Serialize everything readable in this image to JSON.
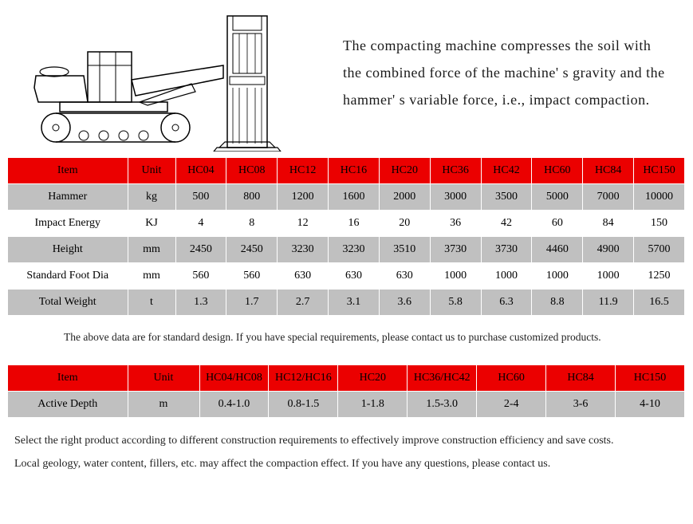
{
  "description": "The compacting machine compresses the soil with the combined force of the machine' s gravity and the hammer' s variable force, i.e., impact compaction.",
  "spec_table": {
    "header_bg": "#eb0000",
    "gray_bg": "#c0c0c0",
    "white_bg": "#ffffff",
    "columns": [
      "Item",
      "Unit",
      "HC04",
      "HC08",
      "HC12",
      "HC16",
      "HC20",
      "HC36",
      "HC42",
      "HC60",
      "HC84",
      "HC150"
    ],
    "rows": [
      {
        "bg": "gray",
        "cells": [
          "Hammer",
          "kg",
          "500",
          "800",
          "1200",
          "1600",
          "2000",
          "3000",
          "3500",
          "5000",
          "7000",
          "10000"
        ]
      },
      {
        "bg": "white",
        "cells": [
          "Impact Energy",
          "KJ",
          "4",
          "8",
          "12",
          "16",
          "20",
          "36",
          "42",
          "60",
          "84",
          "150"
        ]
      },
      {
        "bg": "gray",
        "cells": [
          "Height",
          "mm",
          "2450",
          "2450",
          "3230",
          "3230",
          "3510",
          "3730",
          "3730",
          "4460",
          "4900",
          "5700"
        ]
      },
      {
        "bg": "white",
        "cells": [
          "Standard Foot Dia",
          "mm",
          "560",
          "560",
          "630",
          "630",
          "630",
          "1000",
          "1000",
          "1000",
          "1000",
          "1250"
        ]
      },
      {
        "bg": "gray",
        "cells": [
          "Total Weight",
          "t",
          "1.3",
          "1.7",
          "2.7",
          "3.1",
          "3.6",
          "5.8",
          "6.3",
          "8.8",
          "11.9",
          "16.5"
        ]
      }
    ]
  },
  "note1": "The above data are for standard design. If you have special requirements, please contact us to purchase customized products.",
  "depth_table": {
    "columns": [
      "Item",
      "Unit",
      "HC04/HC08",
      "HC12/HC16",
      "HC20",
      "HC36/HC42",
      "HC60",
      "HC84",
      "HC150"
    ],
    "rows": [
      {
        "bg": "gray",
        "cells": [
          "Active Depth",
          "m",
          "0.4-1.0",
          "0.8-1.5",
          "1-1.8",
          "1.5-3.0",
          "2-4",
          "3-6",
          "4-10"
        ]
      }
    ]
  },
  "note2a": "Select the right product according to different construction requirements to effectively improve construction efficiency and save costs.",
  "note2b": "Local geology, water content, fillers, etc. may affect the compaction effect. If you have any questions, please contact us."
}
